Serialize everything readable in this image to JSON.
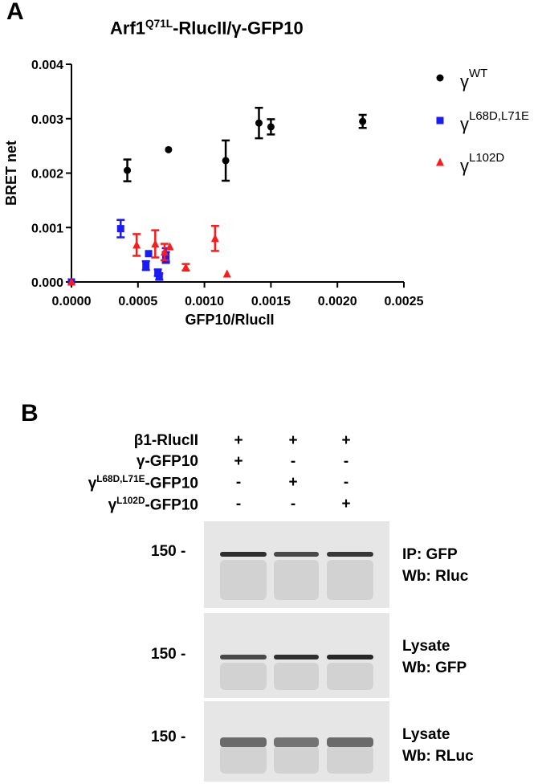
{
  "panel_a": {
    "label": "A",
    "title_main": "Arf1",
    "title_sup": "Q71L",
    "title_rest": "-RlucII/γ-GFP10"
  },
  "panel_b": {
    "label": "B",
    "conditions": [
      {
        "prefix": "β1-RlucII",
        "sup": "",
        "suffix": "",
        "signs": [
          "+",
          "+",
          "+"
        ]
      },
      {
        "prefix": "γ-GFP10",
        "sup": "",
        "suffix": "",
        "signs": [
          "+",
          "-",
          "-"
        ]
      },
      {
        "prefix": "γ",
        "sup": "L68D,L71E",
        "suffix": "-GFP10",
        "signs": [
          "-",
          "+",
          "-"
        ]
      },
      {
        "prefix": "γ",
        "sup": "L102D",
        "suffix": "-GFP10",
        "signs": [
          "-",
          "-",
          "+"
        ]
      }
    ],
    "blots": [
      {
        "mw": "150 -",
        "label_line1": "IP: GFP",
        "label_line2": "Wb: Rluc",
        "band_intensity": [
          0.9,
          0.75,
          0.85
        ]
      },
      {
        "mw": "150 -",
        "label_line1": "Lysate",
        "label_line2": "Wb: GFP",
        "band_intensity": [
          0.75,
          0.9,
          0.95
        ]
      },
      {
        "mw": "150 -",
        "label_line1": "Lysate",
        "label_line2": "Wb: RLuc",
        "band_intensity": [
          0.55,
          0.5,
          0.55
        ]
      }
    ]
  },
  "chart_data": {
    "type": "scatter",
    "title": "Arf1Q71L-RlucII/γ-GFP10",
    "xlabel": "GFP10/RlucII",
    "ylabel": "BRET net",
    "xlim": [
      0,
      0.0025
    ],
    "ylim": [
      0,
      0.004
    ],
    "x_ticks": [
      "0.0000",
      "0.0005",
      "0.0010",
      "0.0015",
      "0.0020",
      "0.0025"
    ],
    "y_ticks": [
      "0.000",
      "0.001",
      "0.002",
      "0.003",
      "0.004"
    ],
    "grid": false,
    "legend_position": "right",
    "series": [
      {
        "name_prefix": "γ",
        "name_sup": "WT",
        "marker": "circle",
        "color": "#000000",
        "points": [
          {
            "x": 0.0,
            "y": 0.0,
            "err": 0
          },
          {
            "x": 0.00042,
            "y": 0.00205,
            "err": 0.0002
          },
          {
            "x": 0.00073,
            "y": 0.00243,
            "err": 0
          },
          {
            "x": 0.00116,
            "y": 0.00223,
            "err": 0.00037
          },
          {
            "x": 0.00141,
            "y": 0.00292,
            "err": 0.00028
          },
          {
            "x": 0.0015,
            "y": 0.00285,
            "err": 0.00014
          },
          {
            "x": 0.00219,
            "y": 0.00295,
            "err": 0.00012
          }
        ]
      },
      {
        "name_prefix": "γ",
        "name_sup": "L68D,L71E",
        "marker": "square",
        "color": "#1b1bf5",
        "points": [
          {
            "x": 0.0,
            "y": 0.0,
            "err": 0
          },
          {
            "x": 0.00037,
            "y": 0.00098,
            "err": 0.00016
          },
          {
            "x": 0.00056,
            "y": 0.0003,
            "err": 8e-05
          },
          {
            "x": 0.00058,
            "y": 0.00052,
            "err": 0
          },
          {
            "x": 0.00065,
            "y": 0.00017,
            "err": 6e-05
          },
          {
            "x": 0.00066,
            "y": 0.0001,
            "err": 6e-05
          },
          {
            "x": 0.00071,
            "y": 0.0005,
            "err": 0.00012
          },
          {
            "x": 0.00071,
            "y": 0.00045,
            "err": 0.0001
          }
        ]
      },
      {
        "name_prefix": "γ",
        "name_sup": "L102D",
        "marker": "triangle",
        "color": "#ff1a1a",
        "points": [
          {
            "x": 0.0,
            "y": 0.0,
            "err": 0
          },
          {
            "x": 0.00049,
            "y": 0.00068,
            "err": 0.0002
          },
          {
            "x": 0.00063,
            "y": 0.0007,
            "err": 0.00025
          },
          {
            "x": 0.0007,
            "y": 0.00055,
            "err": 0.00015
          },
          {
            "x": 0.00074,
            "y": 0.00065,
            "err": 0
          },
          {
            "x": 0.00086,
            "y": 0.00027,
            "err": 6e-05
          },
          {
            "x": 0.00108,
            "y": 0.0008,
            "err": 0.00023
          },
          {
            "x": 0.00117,
            "y": 0.00015,
            "err": 0
          }
        ]
      }
    ]
  }
}
